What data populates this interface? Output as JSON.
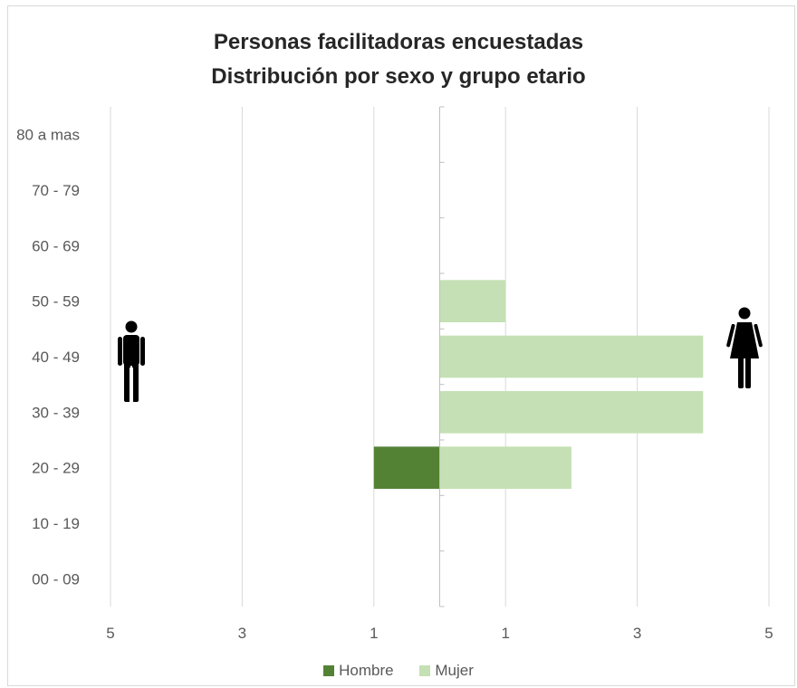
{
  "chart_data": {
    "type": "bar",
    "orientation": "horizontal",
    "title": "Personas facilitadoras encuestadas",
    "subtitle": "Distribución por sexo y grupo etario",
    "categories": [
      "00 - 09",
      "10 - 19",
      "20 - 29",
      "30 - 39",
      "40 - 49",
      "50 - 59",
      "60 - 69",
      "70 - 79",
      "80 a mas"
    ],
    "series": [
      {
        "name": "Hombre",
        "color": "#548235",
        "values": [
          0,
          0,
          1,
          0,
          0,
          0,
          0,
          0,
          0
        ]
      },
      {
        "name": "Mujer",
        "color": "#c5e0b4",
        "values": [
          0,
          0,
          2,
          4,
          4,
          1,
          0,
          0,
          0
        ]
      }
    ],
    "xlim": [
      -5,
      5
    ],
    "x_tick_values": [
      -5,
      -3,
      -1,
      1,
      3,
      5
    ],
    "x_tick_labels": [
      "5",
      "3",
      "1",
      "1",
      "3",
      "5"
    ],
    "grid": true,
    "legend_position": "bottom",
    "icons": {
      "left": "man-icon",
      "right": "woman-icon"
    }
  }
}
